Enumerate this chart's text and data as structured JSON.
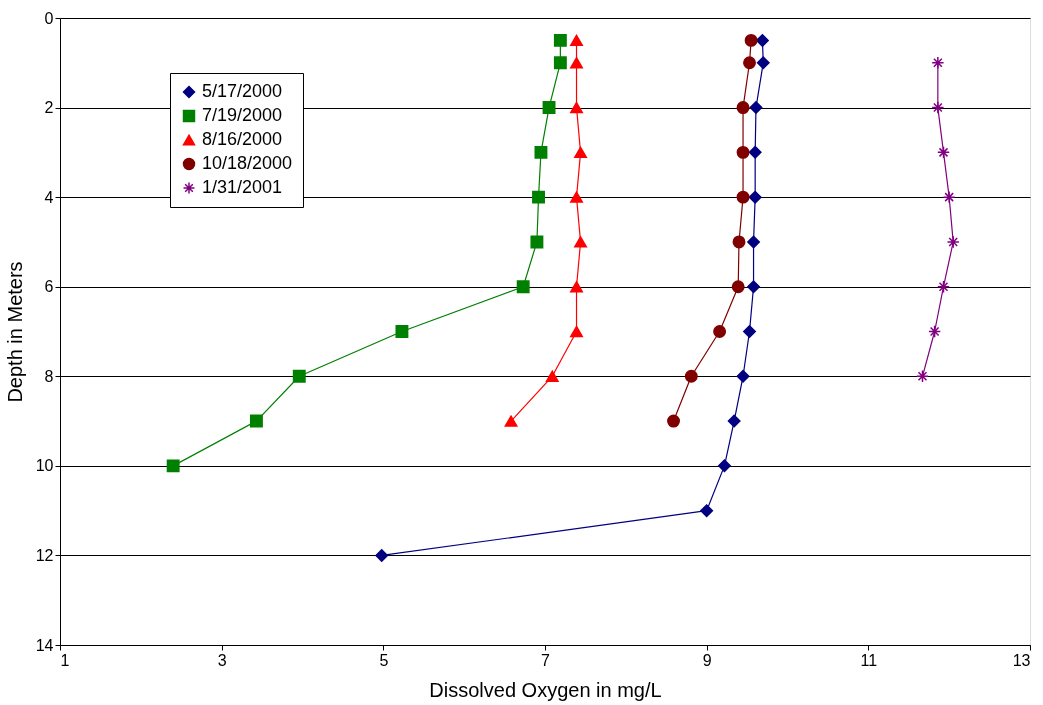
{
  "chart_data": {
    "type": "line",
    "xlabel": "Dissolved Oxygen in mg/L",
    "ylabel": "Depth in Meters",
    "xlim": [
      1,
      13
    ],
    "xticks": [
      1,
      3,
      5,
      7,
      9,
      11,
      13
    ],
    "ylim": [
      14,
      0
    ],
    "yticks": [
      0,
      2,
      4,
      6,
      8,
      10,
      12,
      14
    ],
    "grid": "y",
    "legend": "top left",
    "series": [
      {
        "name": "5/17/2000",
        "color": "#000080",
        "marker": "diamond",
        "x": [
          9.69,
          9.7,
          9.61,
          9.6,
          9.6,
          9.58,
          9.58,
          9.53,
          9.45,
          9.34,
          9.22,
          9.0,
          4.98
        ],
        "values": [
          0.5,
          1,
          2,
          3,
          4,
          5,
          6,
          7,
          8,
          9,
          10,
          11,
          12
        ]
      },
      {
        "name": "7/19/2000",
        "color": "#008000",
        "marker": "square",
        "x": [
          7.19,
          7.19,
          7.05,
          6.95,
          6.92,
          6.9,
          6.73,
          5.23,
          3.96,
          3.43,
          2.4
        ],
        "values": [
          0.5,
          1,
          2,
          3,
          4,
          5,
          6,
          7,
          8,
          9,
          10
        ]
      },
      {
        "name": "8/16/2000",
        "color": "#ff0000",
        "marker": "triangle",
        "x": [
          7.39,
          7.39,
          7.39,
          7.44,
          7.39,
          7.44,
          7.39,
          7.39,
          7.09,
          6.58
        ],
        "values": [
          0.5,
          1,
          2,
          3,
          4,
          5,
          6,
          7,
          8,
          9
        ]
      },
      {
        "name": "10/18/2000",
        "color": "#800000",
        "marker": "circle",
        "x": [
          9.55,
          9.53,
          9.45,
          9.45,
          9.45,
          9.4,
          9.39,
          9.16,
          8.81,
          8.59
        ],
        "values": [
          0.5,
          1,
          2,
          3,
          4,
          5,
          6,
          7,
          8,
          9
        ]
      },
      {
        "name": "1/31/2001",
        "color": "#800080",
        "marker": "cross",
        "x": [
          11.86,
          11.86,
          11.93,
          12.0,
          12.05,
          11.93,
          11.82,
          11.67
        ],
        "values": [
          1,
          2,
          3,
          4,
          5,
          6,
          7,
          8
        ]
      }
    ]
  }
}
